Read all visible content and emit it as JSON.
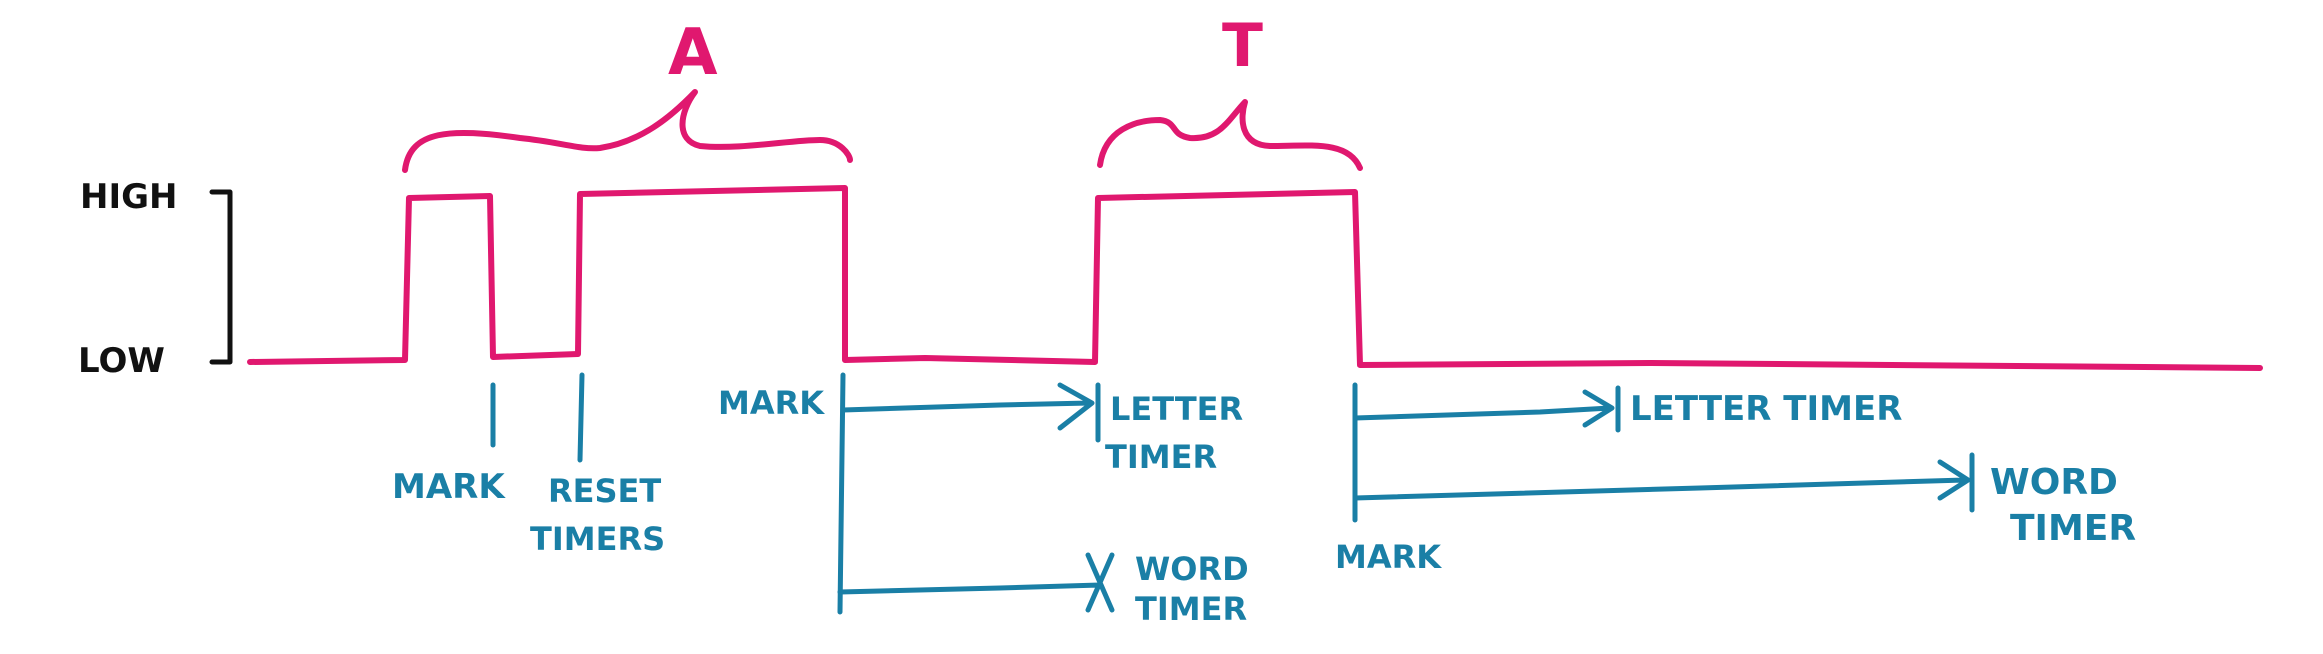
{
  "colors": {
    "signal": "#e0186f",
    "annotation": "#1a7fa6",
    "axis": "#111111",
    "background": "#ffffff"
  },
  "axis": {
    "high_label": "HIGH",
    "low_label": "LOW"
  },
  "letters": {
    "first": "A",
    "second": "T"
  },
  "annotations": {
    "mark_1": "MARK",
    "reset_line1": "RESET",
    "reset_line2": "TIMERS",
    "mark_2": "MARK",
    "letter_timer_1_line1": "LETTER",
    "letter_timer_1_line2": "TIMER",
    "word_timer_1_line1": "WORD",
    "word_timer_1_line2": "TIMER",
    "mark_3": "MARK",
    "letter_timer_2": "LETTER TIMER",
    "word_timer_2_line1": "WORD",
    "word_timer_2_line2": "TIMER"
  }
}
